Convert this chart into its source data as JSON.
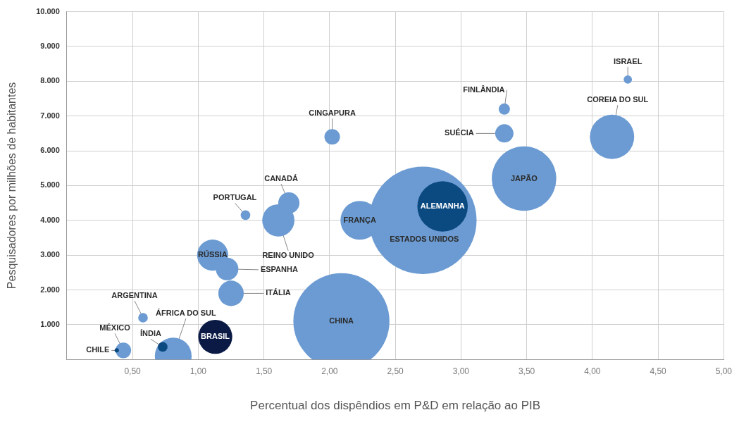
{
  "chart_data": {
    "type": "bubble",
    "xlabel": "Percentual dos dispêndios em P&D em relação ao PIB",
    "ylabel": "Pesquisadores por milhões de habitantes",
    "x": [
      2.09,
      2.71,
      2.23,
      2.86,
      3.48,
      4.15,
      0.81,
      1.13,
      1.61,
      1.11,
      1.25,
      1.22,
      1.69,
      3.33,
      2.02,
      0.43,
      3.33,
      1.36,
      0.58,
      4.27,
      0.73,
      0.38
    ],
    "values": [
      1100,
      4000,
      4000,
      4400,
      5200,
      6400,
      100,
      650,
      4000,
      3000,
      1900,
      2600,
      4500,
      6500,
      6400,
      260,
      7200,
      4150,
      1200,
      8050,
      360,
      260
    ],
    "sizes": [
      0.8,
      1,
      0.13,
      0.22,
      0.36,
      0.17,
      0.117,
      0.1,
      0.09,
      0.084,
      0.056,
      0.044,
      0.039,
      0.029,
      0.021,
      0.021,
      0.011,
      0.008,
      0.008,
      0.006,
      0.008,
      0.0016
    ],
    "colors": [
      "#6b9bd2",
      "#6b9bd2",
      "#6b9bd2",
      "#0b4a80",
      "#6b9bd2",
      "#6b9bd2",
      "#6b9bd2",
      "#0a1a45",
      "#6b9bd2",
      "#6b9bd2",
      "#6b9bd2",
      "#6b9bd2",
      "#6b9bd2",
      "#6b9bd2",
      "#6b9bd2",
      "#6b9bd2",
      "#6b9bd2",
      "#6b9bd2",
      "#6b9bd2",
      "#6b9bd2",
      "#0b4a80",
      "#0b4a80"
    ],
    "xlim": [
      0,
      5
    ],
    "xticks": [
      {
        "value": 0.5,
        "label": "0,50"
      },
      {
        "value": 1,
        "label": "1,00"
      },
      {
        "value": 1.5,
        "label": "1,50"
      },
      {
        "value": 2,
        "label": "2,00"
      },
      {
        "value": 2.5,
        "label": "2,50"
      },
      {
        "value": 3,
        "label": "3,00"
      },
      {
        "value": 3.5,
        "label": "3,50"
      },
      {
        "value": 4,
        "label": "4,00"
      },
      {
        "value": 4.5,
        "label": "4,50"
      },
      {
        "value": 5,
        "label": "5,00"
      }
    ],
    "ylim": [
      0,
      10000
    ],
    "yticks": [
      {
        "value": 1000,
        "label": "1.000"
      },
      {
        "value": 2000,
        "label": "2.000"
      },
      {
        "value": 3000,
        "label": "3.000"
      },
      {
        "value": 4000,
        "label": "4.000"
      },
      {
        "value": 5000,
        "label": "5.000"
      },
      {
        "value": 6000,
        "label": "6.000"
      },
      {
        "value": 7000,
        "label": "7.000"
      },
      {
        "value": 8000,
        "label": "8.000"
      },
      {
        "value": 9000,
        "label": "9.000"
      },
      {
        "value": 10000,
        "label": "10.000"
      }
    ],
    "grid": true,
    "annotations": [
      {
        "text": "CHINA",
        "x": 2.09,
        "y": 1100
      },
      {
        "text": "ESTADOS UNIDOS",
        "x": 2.71,
        "y": 4000
      },
      {
        "text": "FRANÇA",
        "x": 2.23,
        "y": 4000
      },
      {
        "text": "ALEMANHA",
        "x": 2.86,
        "y": 4400
      },
      {
        "text": "JAPÃO",
        "x": 3.48,
        "y": 5200
      },
      {
        "text": "COREIA DO SUL",
        "x": 4.15,
        "y": 6400
      },
      {
        "text": "ÁFRICA DO SUL",
        "x": 0.81,
        "y": 100
      },
      {
        "text": "BRASIL",
        "x": 1.13,
        "y": 650
      },
      {
        "text": "REINO UNIDO",
        "x": 1.61,
        "y": 4000
      },
      {
        "text": "RÚSSIA",
        "x": 1.11,
        "y": 3000
      },
      {
        "text": "ITÁLIA",
        "x": 1.25,
        "y": 1900
      },
      {
        "text": "ESPANHA",
        "x": 1.22,
        "y": 2600
      },
      {
        "text": "CANADÁ",
        "x": 1.69,
        "y": 4500
      },
      {
        "text": "SUÉCIA",
        "x": 3.33,
        "y": 6500
      },
      {
        "text": "CINGAPURA",
        "x": 2.02,
        "y": 6400
      },
      {
        "text": "MÉXICO",
        "x": 0.43,
        "y": 260
      },
      {
        "text": "FINLÂNDIA",
        "x": 3.33,
        "y": 7200
      },
      {
        "text": "PORTUGAL",
        "x": 1.36,
        "y": 4150
      },
      {
        "text": "ARGENTINA",
        "x": 0.58,
        "y": 1200
      },
      {
        "text": "ISRAEL",
        "x": 4.27,
        "y": 8050
      },
      {
        "text": "ÍNDIA",
        "x": 0.73,
        "y": 360
      },
      {
        "text": "CHILE",
        "x": 0.38,
        "y": 260
      }
    ]
  }
}
